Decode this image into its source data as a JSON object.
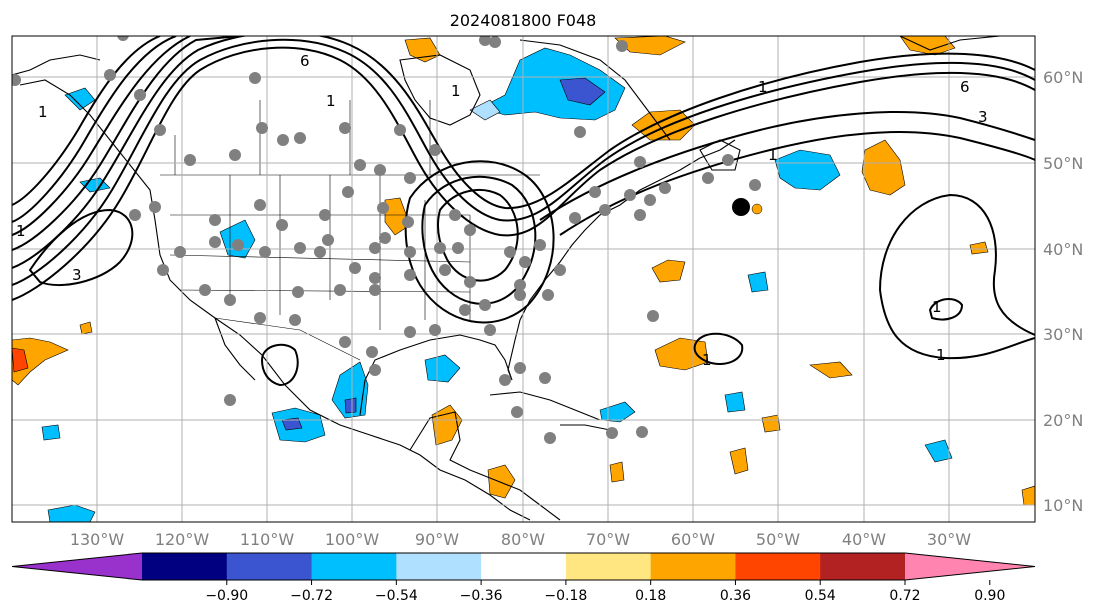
{
  "title": "2024081800 F048",
  "lon_labels": [
    "130°W",
    "120°W",
    "110°W",
    "100°W",
    "90°W",
    "80°W",
    "70°W",
    "60°W",
    "50°W",
    "40°W",
    "30°W"
  ],
  "lat_labels": [
    "60°N",
    "50°N",
    "40°N",
    "30°N",
    "20°N",
    "10°N"
  ],
  "colorbar": {
    "colors": [
      "#9932cc",
      "#000080",
      "#3a55cf",
      "#00bfff",
      "#b0e0ff",
      "#ffffff",
      "#ffe680",
      "#ffa500",
      "#ff4500",
      "#b22222",
      "#ff85b0"
    ],
    "tick_labels": [
      "−0.90",
      "−0.72",
      "−0.54",
      "−0.36",
      "−0.18",
      "0.18",
      "0.36",
      "0.54",
      "0.72",
      "0.90"
    ]
  },
  "contour_labels": [
    "6",
    "1",
    "6",
    "1",
    "3",
    "1",
    "1",
    "1",
    "6",
    "1",
    "1",
    "1",
    "3",
    "1"
  ],
  "colors": {
    "contour": "#000000",
    "dots": "#808080",
    "grid": "#b0b0b0",
    "coast": "#000000"
  }
}
